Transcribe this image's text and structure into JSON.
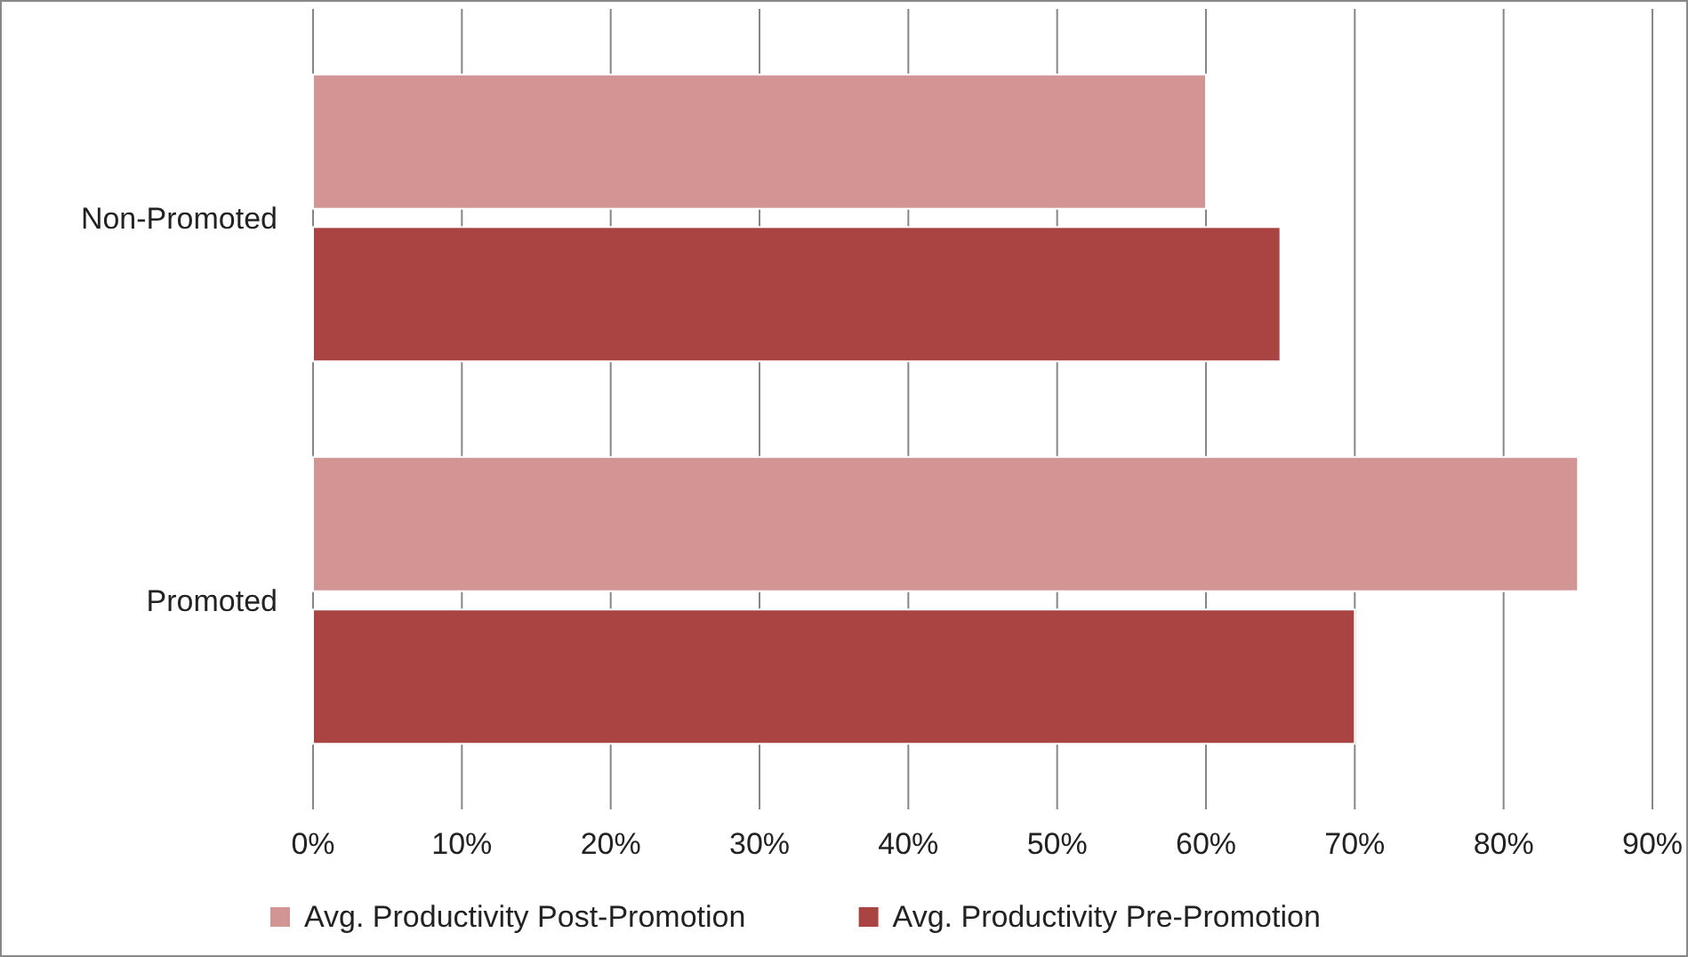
{
  "chart_data": {
    "type": "bar",
    "orientation": "horizontal",
    "categories": [
      "Non-Promoted",
      "Promoted"
    ],
    "series": [
      {
        "name": "Avg. Productivity Post-Promotion",
        "color": "#d39494",
        "values": [
          60,
          85
        ]
      },
      {
        "name": "Avg. Productivity Pre-Promotion",
        "color": "#a94442",
        "values": [
          65,
          70
        ]
      }
    ],
    "xlim": [
      0,
      90
    ],
    "xticks": [
      {
        "value": 0,
        "label": "0%"
      },
      {
        "value": 10,
        "label": "10%"
      },
      {
        "value": 20,
        "label": "20%"
      },
      {
        "value": 30,
        "label": "30%"
      },
      {
        "value": 40,
        "label": "40%"
      },
      {
        "value": 50,
        "label": "50%"
      },
      {
        "value": 60,
        "label": "60%"
      },
      {
        "value": 70,
        "label": "70%"
      },
      {
        "value": 80,
        "label": "80%"
      },
      {
        "value": 90,
        "label": "90%"
      }
    ],
    "grid": "x",
    "legend": "bottom"
  }
}
